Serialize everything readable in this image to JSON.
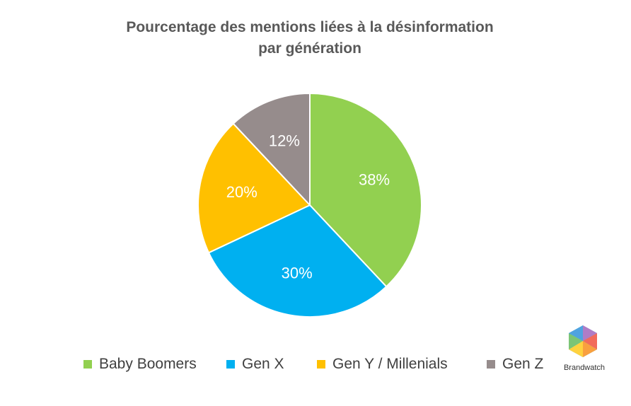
{
  "chart_data": {
    "type": "pie",
    "title_lines": [
      "Pourcentage des mentions liées à la désinformation",
      "par génération"
    ],
    "categories": [
      "Baby Boomers",
      "Gen X",
      "Gen Y / Millenials",
      "Gen Z"
    ],
    "values": [
      38,
      30,
      20,
      12
    ],
    "data_labels": [
      "38%",
      "30%",
      "20%",
      "12%"
    ],
    "colors": [
      "#92D050",
      "#00B0F0",
      "#FFC000",
      "#968C8C"
    ],
    "label_color": "#FFFFFF",
    "legend_position": "bottom",
    "start_angle": "12 o'clock, clockwise"
  },
  "logo": {
    "name": "Brandwatch",
    "icon": "brandwatch-hexagon-icon"
  }
}
